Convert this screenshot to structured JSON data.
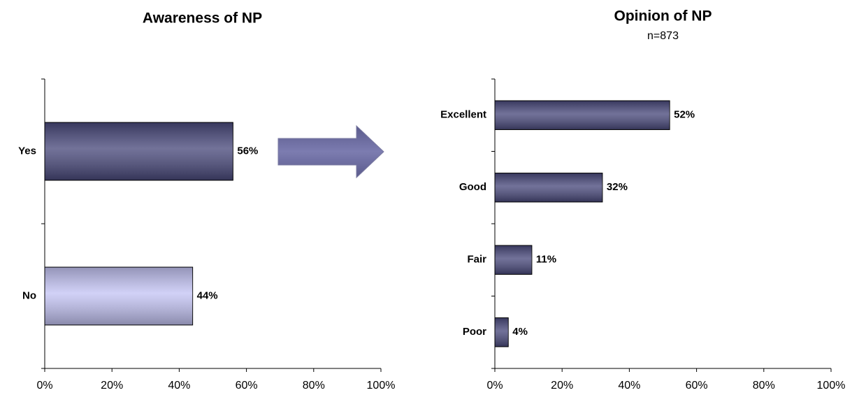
{
  "chart_data": [
    {
      "type": "bar",
      "orientation": "horizontal",
      "title": "Awareness of NP",
      "categories": [
        "Yes",
        "No"
      ],
      "values": [
        56,
        44
      ],
      "value_labels": [
        "56%",
        "44%"
      ],
      "colors": [
        "#4a4a7c",
        "#c4c4f4"
      ],
      "xlim": [
        0,
        100
      ],
      "xticks": [
        {
          "value": 0,
          "label": "0%"
        },
        {
          "value": 20,
          "label": "20%"
        },
        {
          "value": 40,
          "label": "40%"
        },
        {
          "value": 60,
          "label": "60%"
        },
        {
          "value": 80,
          "label": "80%"
        },
        {
          "value": 100,
          "label": "100%"
        }
      ]
    },
    {
      "type": "bar",
      "orientation": "horizontal",
      "title": "Opinion of NP",
      "subtitle": "n=873",
      "categories": [
        "Excellent",
        "Good",
        "Fair",
        "Poor"
      ],
      "values": [
        52,
        32,
        11,
        4
      ],
      "value_labels": [
        "52%",
        "32%",
        "11%",
        "4%"
      ],
      "colors": [
        "#4a4a7c",
        "#4a4a7c",
        "#4a4a7c",
        "#4a4a7c"
      ],
      "xlim": [
        0,
        100
      ],
      "xticks": [
        {
          "value": 0,
          "label": "0%"
        },
        {
          "value": 20,
          "label": "20%"
        },
        {
          "value": 40,
          "label": "40%"
        },
        {
          "value": 60,
          "label": "60%"
        },
        {
          "value": 80,
          "label": "80%"
        },
        {
          "value": 100,
          "label": "100%"
        }
      ]
    }
  ]
}
